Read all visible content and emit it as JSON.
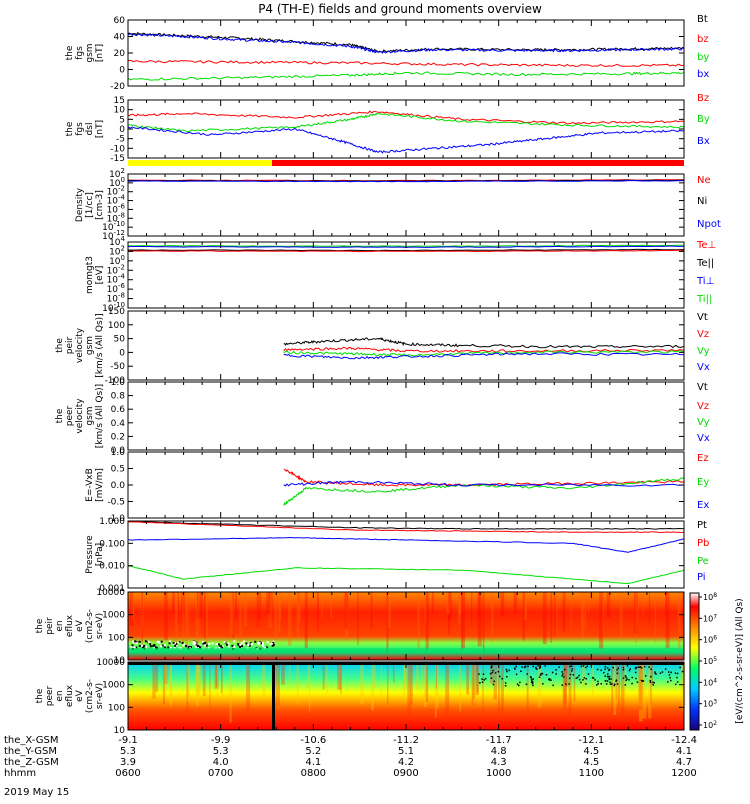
{
  "title": "P4 (TH-E) fields and ground moments overview",
  "date_label": "2019 May 15",
  "colors": {
    "black": "#000000",
    "red": "#ff0000",
    "green": "#00dd00",
    "blue": "#0000ff",
    "yellow": "#ffff00"
  },
  "mode_bar": {
    "yellow_until": "0727",
    "red_after": "0727"
  },
  "chart_data": [
    {
      "type": "line",
      "id": "fgs_gsm",
      "ylabel": [
        "the",
        "fgs",
        "gsm",
        "[nT]"
      ],
      "yticks": [
        "60",
        "40",
        "20",
        "0",
        "-20"
      ],
      "ylim": [
        -20,
        60
      ],
      "legend": [
        {
          "name": "Bt",
          "color": "#000000"
        },
        {
          "name": "bz",
          "color": "#ff0000"
        },
        {
          "name": "by",
          "color": "#00dd00"
        },
        {
          "name": "bx",
          "color": "#0000ff"
        }
      ],
      "series": [
        {
          "name": "Bt",
          "color": "#000000",
          "points": [
            [
              0,
              44
            ],
            [
              0.1,
              41
            ],
            [
              0.2,
              38
            ],
            [
              0.3,
              34
            ],
            [
              0.4,
              30
            ],
            [
              0.45,
              22
            ],
            [
              0.55,
              25
            ],
            [
              0.7,
              24
            ],
            [
              0.8,
              24
            ],
            [
              0.9,
              25
            ],
            [
              1,
              26
            ]
          ]
        },
        {
          "name": "bx",
          "color": "#0000ff",
          "points": [
            [
              0,
              43
            ],
            [
              0.1,
              40
            ],
            [
              0.2,
              36
            ],
            [
              0.3,
              33
            ],
            [
              0.4,
              28
            ],
            [
              0.45,
              21
            ],
            [
              0.55,
              24
            ],
            [
              0.7,
              23
            ],
            [
              0.8,
              23
            ],
            [
              0.9,
              24
            ],
            [
              1,
              25
            ]
          ]
        },
        {
          "name": "bz",
          "color": "#ff0000",
          "points": [
            [
              0,
              10
            ],
            [
              0.2,
              9
            ],
            [
              0.4,
              8
            ],
            [
              0.6,
              6
            ],
            [
              0.8,
              5
            ],
            [
              1,
              5
            ]
          ]
        },
        {
          "name": "by",
          "color": "#00dd00",
          "points": [
            [
              0,
              -12
            ],
            [
              0.2,
              -10
            ],
            [
              0.4,
              -7
            ],
            [
              0.5,
              -4
            ],
            [
              0.7,
              -6
            ],
            [
              0.9,
              -5
            ],
            [
              1,
              -4
            ]
          ]
        }
      ]
    },
    {
      "type": "line",
      "id": "fgs_dsl",
      "ylabel": [
        "the",
        "fgs",
        "dsl",
        "[nT]"
      ],
      "yticks": [
        "15",
        "10",
        "5",
        "0",
        "-5",
        "-10",
        "-15"
      ],
      "ylim": [
        -15,
        15
      ],
      "legend": [
        {
          "name": "Bz",
          "color": "#ff0000"
        },
        {
          "name": "By",
          "color": "#00dd00"
        },
        {
          "name": "Bx",
          "color": "#0000ff"
        }
      ],
      "series": [
        {
          "name": "Bz",
          "color": "#ff0000",
          "points": [
            [
              0,
              7
            ],
            [
              0.1,
              8
            ],
            [
              0.3,
              6
            ],
            [
              0.45,
              9
            ],
            [
              0.6,
              5
            ],
            [
              0.8,
              3
            ],
            [
              1,
              4
            ]
          ]
        },
        {
          "name": "By",
          "color": "#00dd00",
          "points": [
            [
              0,
              2
            ],
            [
              0.1,
              -1
            ],
            [
              0.3,
              1
            ],
            [
              0.4,
              5
            ],
            [
              0.45,
              8
            ],
            [
              0.6,
              4
            ],
            [
              0.8,
              2
            ],
            [
              1,
              1
            ]
          ]
        },
        {
          "name": "Bx",
          "color": "#0000ff",
          "points": [
            [
              0,
              1
            ],
            [
              0.15,
              -3
            ],
            [
              0.3,
              0
            ],
            [
              0.38,
              -6
            ],
            [
              0.45,
              -12
            ],
            [
              0.55,
              -10
            ],
            [
              0.65,
              -8
            ],
            [
              0.75,
              -5
            ],
            [
              0.85,
              -2
            ],
            [
              1,
              -1
            ]
          ]
        }
      ]
    },
    {
      "type": "line",
      "id": "density",
      "ylabel": [
        "Density",
        "[1/cc]",
        "[cm-3]"
      ],
      "yticks": [
        "10^2",
        "10^0",
        "10^-2",
        "10^-4",
        "10^-6",
        "10^-8",
        "10^-10",
        "10^-12"
      ],
      "ylim": [
        -12,
        2
      ],
      "log": true,
      "legend": [
        {
          "name": "Ne",
          "color": "#ff0000"
        },
        {
          "name": "Ni",
          "color": "#000000"
        },
        {
          "name": "Npot",
          "color": "#0000ff"
        }
      ],
      "series": [
        {
          "name": "Ne",
          "color": "#ff0000",
          "points": [
            [
              0,
              0.6
            ],
            [
              0.5,
              0.5
            ],
            [
              1,
              0.7
            ]
          ]
        },
        {
          "name": "Ni",
          "color": "#000000",
          "points": [
            [
              0,
              0.5
            ],
            [
              0.5,
              0.4
            ],
            [
              1,
              0.6
            ]
          ]
        },
        {
          "name": "Npot",
          "color": "#0000ff",
          "points": [
            [
              0,
              0.4
            ],
            [
              0.5,
              0.3
            ],
            [
              1,
              0.5
            ]
          ]
        }
      ]
    },
    {
      "type": "line",
      "id": "temperature",
      "ylabel": [
        "momgt3",
        "[eV]"
      ],
      "yticks": [
        "10^4",
        "10^2",
        "10^0",
        "10^-2",
        "10^-4",
        "10^-6",
        "10^-8",
        "10^-10"
      ],
      "ylim": [
        -10,
        4
      ],
      "log": true,
      "legend": [
        {
          "name": "Te⊥",
          "color": "#ff0000"
        },
        {
          "name": "Te||",
          "color": "#000000"
        },
        {
          "name": "Ti⊥",
          "color": "#0000ff"
        },
        {
          "name": "Ti||",
          "color": "#00dd00"
        }
      ],
      "series": [
        {
          "name": "Ti||",
          "color": "#00dd00",
          "points": [
            [
              0,
              3.2
            ],
            [
              0.5,
              3.1
            ],
            [
              1,
              3.3
            ]
          ]
        },
        {
          "name": "Ti⊥",
          "color": "#0000ff",
          "points": [
            [
              0,
              3.0
            ],
            [
              0.5,
              2.9
            ],
            [
              1,
              3.1
            ]
          ]
        },
        {
          "name": "Te||",
          "color": "#000000",
          "points": [
            [
              0,
              2.3
            ],
            [
              0.5,
              2.2
            ],
            [
              1,
              2.4
            ]
          ]
        },
        {
          "name": "Te⊥",
          "color": "#ff0000",
          "points": [
            [
              0,
              2.1
            ],
            [
              0.5,
              2.0
            ],
            [
              1,
              2.2
            ]
          ]
        }
      ]
    },
    {
      "type": "line",
      "id": "peir_velocity",
      "ylabel": [
        "the",
        "peir",
        "velocity",
        "gsm",
        "[km/s (All Qs)]"
      ],
      "yticks": [
        "150",
        "100",
        "50",
        "0",
        "-50",
        "-100"
      ],
      "ylim": [
        -100,
        150
      ],
      "legend": [
        {
          "name": "Vt",
          "color": "#000000"
        },
        {
          "name": "Vz",
          "color": "#ff0000"
        },
        {
          "name": "Vy",
          "color": "#00dd00"
        },
        {
          "name": "Vx",
          "color": "#0000ff"
        }
      ],
      "data_start": 0.28,
      "series": [
        {
          "name": "Vt",
          "color": "#000000",
          "points": [
            [
              0.28,
              30
            ],
            [
              0.35,
              40
            ],
            [
              0.45,
              50
            ],
            [
              0.5,
              30
            ],
            [
              0.6,
              25
            ],
            [
              0.8,
              20
            ],
            [
              1,
              22
            ]
          ]
        },
        {
          "name": "Vz",
          "color": "#ff0000",
          "points": [
            [
              0.28,
              10
            ],
            [
              0.4,
              15
            ],
            [
              0.5,
              5
            ],
            [
              0.7,
              5
            ],
            [
              1,
              8
            ]
          ]
        },
        {
          "name": "Vy",
          "color": "#00dd00",
          "points": [
            [
              0.28,
              0
            ],
            [
              0.4,
              -5
            ],
            [
              0.5,
              -10
            ],
            [
              0.7,
              0
            ],
            [
              1,
              2
            ]
          ]
        },
        {
          "name": "Vx",
          "color": "#0000ff",
          "points": [
            [
              0.28,
              -10
            ],
            [
              0.4,
              -20
            ],
            [
              0.5,
              -15
            ],
            [
              0.7,
              -5
            ],
            [
              1,
              -8
            ]
          ]
        }
      ]
    },
    {
      "type": "line",
      "id": "peer_velocity",
      "ylabel": [
        "the",
        "peer",
        "velocity",
        "gsm",
        "[km/s (All Qs)]"
      ],
      "yticks": [
        "1.0",
        "0.8",
        "0.6",
        "0.4",
        "0.2",
        "0.0"
      ],
      "ylim": [
        0,
        1
      ],
      "legend": [
        {
          "name": "Vt",
          "color": "#000000"
        },
        {
          "name": "Vz",
          "color": "#ff0000"
        },
        {
          "name": "Vy",
          "color": "#00dd00"
        },
        {
          "name": "Vx",
          "color": "#0000ff"
        }
      ],
      "series": []
    },
    {
      "type": "line",
      "id": "efield",
      "ylabel": [
        "E=-VxB",
        "[mV/m]"
      ],
      "yticks": [
        "1.0",
        "0.5",
        "0.0",
        "-0.5",
        "-1.0"
      ],
      "ylim": [
        -1,
        1
      ],
      "legend": [
        {
          "name": "Ez",
          "color": "#ff0000"
        },
        {
          "name": "Ey",
          "color": "#00dd00"
        },
        {
          "name": "Ex",
          "color": "#0000ff"
        }
      ],
      "data_start": 0.28,
      "series": [
        {
          "name": "Ez",
          "color": "#ff0000",
          "points": [
            [
              0.28,
              0.5
            ],
            [
              0.32,
              0.1
            ],
            [
              0.45,
              0.0
            ],
            [
              0.6,
              0.0
            ],
            [
              0.8,
              0.05
            ],
            [
              1,
              0.1
            ]
          ]
        },
        {
          "name": "Ey",
          "color": "#00dd00",
          "points": [
            [
              0.28,
              -0.6
            ],
            [
              0.32,
              -0.1
            ],
            [
              0.45,
              -0.2
            ],
            [
              0.6,
              0.0
            ],
            [
              0.8,
              -0.1
            ],
            [
              1,
              0.2
            ]
          ]
        },
        {
          "name": "Ex",
          "color": "#0000ff",
          "points": [
            [
              0.28,
              0.0
            ],
            [
              0.4,
              0.1
            ],
            [
              0.6,
              0.0
            ],
            [
              1,
              0.0
            ]
          ]
        }
      ]
    },
    {
      "type": "line",
      "id": "pressure",
      "ylabel": [
        "Pressure",
        "[nPa]"
      ],
      "yticks": [
        "1.000",
        "0.100",
        "0.010",
        "0.001"
      ],
      "ylim": [
        -3,
        0
      ],
      "log": true,
      "legend": [
        {
          "name": "Pt",
          "color": "#000000"
        },
        {
          "name": "Pb",
          "color": "#ff0000"
        },
        {
          "name": "Pe",
          "color": "#00dd00"
        },
        {
          "name": "Pi",
          "color": "#0000ff"
        }
      ],
      "series": [
        {
          "name": "Pt",
          "color": "#000000",
          "points": [
            [
              0,
              -0.02
            ],
            [
              0.4,
              -0.3
            ],
            [
              0.6,
              -0.35
            ],
            [
              0.8,
              -0.35
            ],
            [
              1,
              -0.35
            ]
          ]
        },
        {
          "name": "Pb",
          "color": "#ff0000",
          "points": [
            [
              0,
              -0.03
            ],
            [
              0.4,
              -0.4
            ],
            [
              0.6,
              -0.45
            ],
            [
              0.8,
              -0.5
            ],
            [
              1,
              -0.5
            ]
          ]
        },
        {
          "name": "Pi",
          "color": "#0000ff",
          "points": [
            [
              0,
              -0.85
            ],
            [
              0.3,
              -0.75
            ],
            [
              0.5,
              -0.85
            ],
            [
              0.8,
              -1.0
            ],
            [
              0.9,
              -1.4
            ],
            [
              1,
              -0.8
            ]
          ]
        },
        {
          "name": "Pe",
          "color": "#00dd00",
          "points": [
            [
              0,
              -2.0
            ],
            [
              0.1,
              -2.6
            ],
            [
              0.3,
              -2.1
            ],
            [
              0.6,
              -2.2
            ],
            [
              0.9,
              -2.8
            ],
            [
              1,
              -2.2
            ]
          ]
        }
      ]
    },
    {
      "type": "heatmap",
      "id": "peir_eflux",
      "ylabel": [
        "the",
        "peir",
        "en",
        "eflux",
        "eV",
        "(cm2-s-",
        "sr-eV)"
      ],
      "yticks": [
        "10000",
        "1000",
        "100",
        "10"
      ],
      "ylim": [
        1,
        4.3
      ],
      "log": true
    },
    {
      "type": "heatmap",
      "id": "peer_eflux",
      "ylabel": [
        "the",
        "peer",
        "en",
        "eflux",
        "eV",
        "(cm2-s-",
        "sr-eV)"
      ],
      "yticks": [
        "10000",
        "1000",
        "100",
        "10"
      ],
      "ylim": [
        1,
        4.3
      ],
      "log": true
    }
  ],
  "colorbar": {
    "ticks": [
      "10^8",
      "10^7",
      "10^6",
      "10^5",
      "10^4",
      "10^3",
      "10^2"
    ],
    "label": "[eV/(cm^2-s-sr-eV)] (All Qs)"
  },
  "time_axis": {
    "rows": [
      {
        "label": "the_X-GSM",
        "values": [
          "-9.1",
          "-9.9",
          "-10.6",
          "-11.2",
          "-11.7",
          "-12.1",
          "-12.4"
        ]
      },
      {
        "label": "the_Y-GSM",
        "values": [
          "5.3",
          "5.3",
          "5.2",
          "5.1",
          "4.8",
          "4.5",
          "4.1"
        ]
      },
      {
        "label": "the_Z-GSM",
        "values": [
          "3.9",
          "4.0",
          "4.1",
          "4.2",
          "4.3",
          "4.5",
          "4.7"
        ]
      },
      {
        "label": "hhmm",
        "values": [
          "0600",
          "0700",
          "0800",
          "0900",
          "1000",
          "1100",
          "1200"
        ]
      }
    ]
  }
}
